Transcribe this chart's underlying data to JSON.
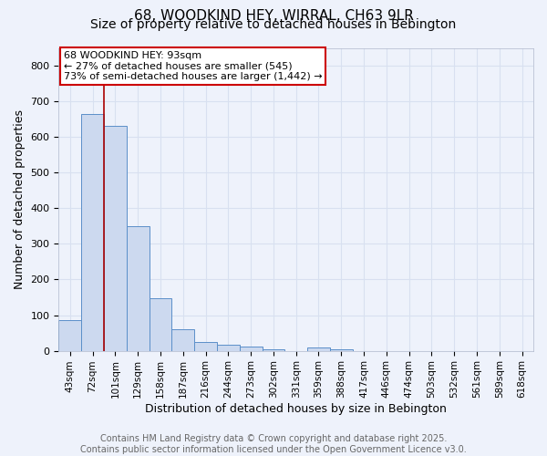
{
  "title_line1": "68, WOODKIND HEY, WIRRAL, CH63 9LR",
  "title_line2": "Size of property relative to detached houses in Bebington",
  "xlabel": "Distribution of detached houses by size in Bebington",
  "ylabel": "Number of detached properties",
  "categories": [
    "43sqm",
    "72sqm",
    "101sqm",
    "129sqm",
    "158sqm",
    "187sqm",
    "216sqm",
    "244sqm",
    "273sqm",
    "302sqm",
    "331sqm",
    "359sqm",
    "388sqm",
    "417sqm",
    "446sqm",
    "474sqm",
    "503sqm",
    "532sqm",
    "561sqm",
    "589sqm",
    "618sqm"
  ],
  "values": [
    85,
    665,
    630,
    350,
    148,
    60,
    25,
    18,
    12,
    5,
    0,
    8,
    5,
    0,
    0,
    0,
    0,
    0,
    0,
    0,
    0
  ],
  "bar_color": "#ccd9ef",
  "bar_edge_color": "#5b8fc9",
  "vline_color": "#aa0000",
  "vline_x": 1.5,
  "ylim": [
    0,
    850
  ],
  "yticks": [
    0,
    100,
    200,
    300,
    400,
    500,
    600,
    700,
    800
  ],
  "annotation_text": "68 WOODKIND HEY: 93sqm\n← 27% of detached houses are smaller (545)\n73% of semi-detached houses are larger (1,442) →",
  "annotation_box_color": "#ffffff",
  "annotation_box_edge": "#cc0000",
  "footer_line1": "Contains HM Land Registry data © Crown copyright and database right 2025.",
  "footer_line2": "Contains public sector information licensed under the Open Government Licence v3.0.",
  "background_color": "#eef2fb",
  "grid_color": "#d8e0f0",
  "title_fontsize": 11,
  "subtitle_fontsize": 10,
  "tick_fontsize": 7.5,
  "label_fontsize": 9,
  "footer_fontsize": 7,
  "annotation_fontsize": 8
}
